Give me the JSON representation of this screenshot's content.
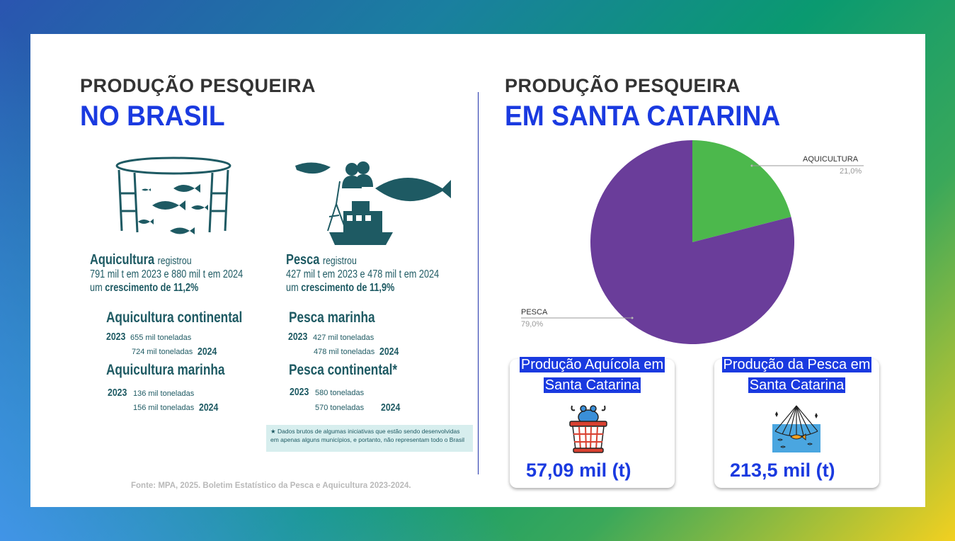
{
  "left": {
    "heading_top": "PRODUÇÃO PESQUEIRA",
    "heading_bottom": "NO BRASIL",
    "aquicultura": {
      "title": "Aquicultura",
      "title_suffix": "registrou",
      "line2": "791 mil t em 2023 e 880 mil t em 2024",
      "line3_prefix": "um",
      "line3_bold": "crescimento de 11,2%"
    },
    "pesca": {
      "title": "Pesca",
      "title_suffix": "registrou",
      "line2": "427 mil t em 2023 e 478 mil t em 2024",
      "line3_prefix": "um",
      "line3_bold": "crescimento de 11,9%"
    },
    "blocks": [
      {
        "title": "Aquicultura continental",
        "y1": "2023",
        "v1": "655 mil toneladas",
        "y2": "2024",
        "v2": "724 mil toneladas"
      },
      {
        "title": "Aquicultura marinha",
        "y1": "2023",
        "v1": "136 mil toneladas",
        "y2": "2024",
        "v2": "156 mil toneladas"
      },
      {
        "title": "Pesca marinha",
        "y1": "2023",
        "v1": "427 mil toneladas",
        "y2": "2024",
        "v2": "478 mil toneladas"
      },
      {
        "title": "Pesca continental*",
        "y1": "2023",
        "v1": "580 toneladas",
        "y2": "2024",
        "v2": "570 toneladas"
      }
    ],
    "note_star": "★",
    "note": "Dados brutos de algumas iniciativas que estão sendo desenvolvidas em apenas alguns municípios, e portanto, não representam todo o Brasil",
    "source": "Fonte: MPA, 2025. Boletim Estatístico da Pesca e Aquicultura 2023-2024."
  },
  "right": {
    "heading_top": "PRODUÇÃO PESQUEIRA",
    "heading_bottom": "EM SANTA CATARINA",
    "kpis": [
      {
        "title_line1": "Produção Aquícola em",
        "title_line2": "Santa Catarina",
        "value": "57,09 mil (t)",
        "icon": "crab-basket-icon"
      },
      {
        "title_line1": "Produção da Pesca em",
        "title_line2": "Santa Catarina",
        "value": "213,5 mil (t)",
        "icon": "fishing-net-icon"
      }
    ]
  },
  "chart_data": {
    "type": "pie",
    "slices": [
      {
        "label": "AQUICULTURA",
        "value": 21.0,
        "pct_label": "21,0%",
        "color": "#4cb84c"
      },
      {
        "label": "PESCA",
        "value": 79.0,
        "pct_label": "79,0%",
        "color": "#6a3d9a"
      }
    ]
  }
}
